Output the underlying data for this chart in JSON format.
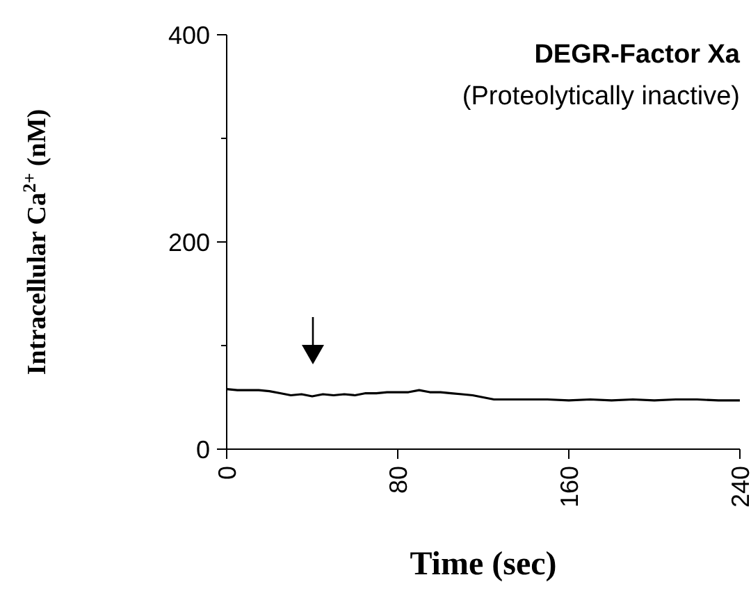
{
  "chart_data": {
    "type": "line",
    "title": "DEGR-Factor Xa",
    "subtitle": "(Proteolytically inactive)",
    "xlabel": "Time  (sec)",
    "ylabel": "Intracellular Ca$^{2+}$  (nM)",
    "x": [
      0,
      5,
      10,
      15,
      20,
      25,
      30,
      35,
      40,
      45,
      50,
      55,
      60,
      65,
      70,
      75,
      80,
      85,
      90,
      95,
      100,
      105,
      110,
      115,
      120,
      125,
      130,
      140,
      150,
      160,
      170,
      180,
      190,
      200,
      210,
      220,
      230,
      240
    ],
    "series": [
      {
        "color": "#000000",
        "values": [
          58,
          57,
          57,
          57,
          56,
          54,
          52,
          53,
          51,
          53,
          52,
          53,
          52,
          54,
          54,
          55,
          55,
          55,
          57,
          55,
          55,
          54,
          53,
          52,
          50,
          48,
          48,
          48,
          48,
          47,
          48,
          47,
          48,
          47,
          48,
          48,
          47,
          47
        ]
      }
    ],
    "xlim": [
      0,
      240
    ],
    "xticks": [
      0,
      80,
      160,
      240
    ],
    "ylim": [
      0,
      400
    ],
    "yticks": [
      0,
      {
        "value": 100,
        "label": null
      },
      200,
      {
        "value": 300,
        "label": null
      },
      400
    ],
    "marker": "none",
    "line_style": "solid"
  }
}
